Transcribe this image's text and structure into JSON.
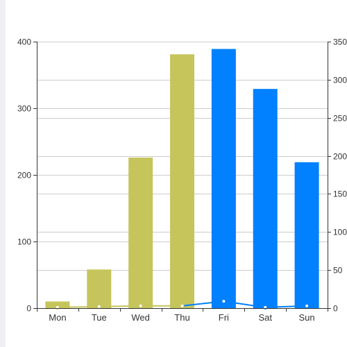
{
  "chart_data": {
    "type": "bar",
    "categories": [
      "Mon",
      "Tue",
      "Wed",
      "Thu",
      "Fri",
      "Sat",
      "Sun"
    ],
    "series": [
      {
        "type": "bar",
        "axis": "left",
        "values": [
          10,
          58,
          226,
          381,
          389,
          329,
          219
        ],
        "colors": [
          "#c5c55c",
          "#c5c55c",
          "#c5c55c",
          "#c5c55c",
          "#0180ff",
          "#0180ff",
          "#0180ff"
        ]
      },
      {
        "type": "line",
        "axis": "right",
        "values": [
          1,
          2,
          3,
          3,
          9,
          1,
          3
        ],
        "colors": [
          "#c5c55c",
          "#c5c55c",
          "#c5c55c",
          "#c5c55c",
          "#0180ff",
          "#0180ff",
          "#0180ff"
        ]
      }
    ],
    "y_left": {
      "ticks": [
        "0",
        "100",
        "200",
        "300",
        "400"
      ],
      "min": 0,
      "max": 400
    },
    "y_right": {
      "ticks": [
        "0",
        "50",
        "100",
        "150",
        "200",
        "250",
        "300",
        "350"
      ],
      "min": 0,
      "max": 350
    },
    "grid": true,
    "colors": {
      "past": "#c5c55c",
      "future": "#0180ff",
      "grid": "#cccccc",
      "axis": "#333333"
    }
  }
}
